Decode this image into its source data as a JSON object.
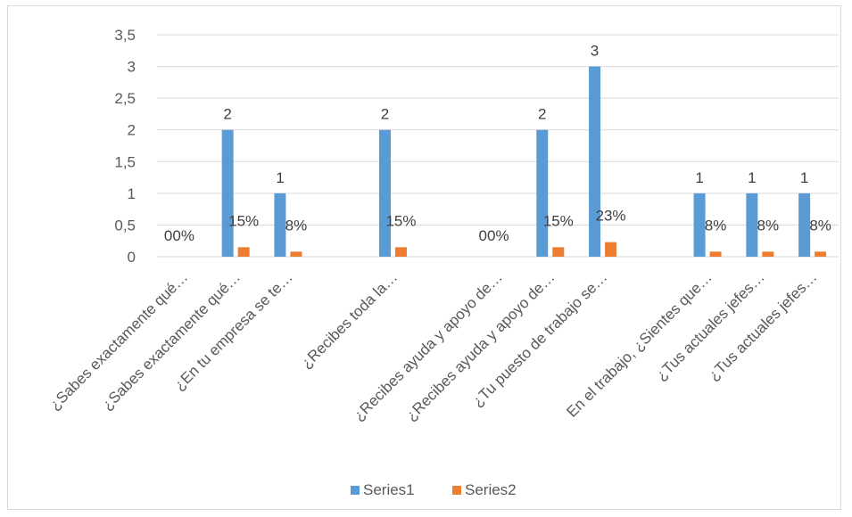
{
  "chart_data": {
    "type": "bar",
    "categories": [
      "¿Sabes exactamente qué…",
      "¿Sabes exactamente qué…",
      "¿En tu empresa se te…",
      "",
      "¿Recibes toda la…",
      "",
      "¿Recibes ayuda y apoyo de…",
      "¿Recibes ayuda y apoyo de…",
      "¿Tu puesto de trabajo se…",
      "",
      "En el trabajo, ¿Sientes que…",
      "¿Tus actuales jefes…",
      "¿Tus actuales jefes…"
    ],
    "series": [
      {
        "name": "Series1",
        "color": "#5b9bd5",
        "values": [
          0,
          2,
          1,
          null,
          2,
          null,
          0,
          2,
          3,
          null,
          1,
          1,
          1
        ],
        "labels": [
          "0",
          "2",
          "1",
          "",
          "2",
          "",
          "0",
          "2",
          "3",
          "",
          "1",
          "1",
          "1"
        ]
      },
      {
        "name": "Series2",
        "color": "#ed7d31",
        "values": [
          0,
          0.15,
          0.08,
          null,
          0.15,
          null,
          0,
          0.15,
          0.23,
          null,
          0.08,
          0.08,
          0.08
        ],
        "labels": [
          "0%",
          "15%",
          "8%",
          "",
          "15%",
          "",
          "0%",
          "15%",
          "23%",
          "",
          "8%",
          "8%",
          "8%"
        ]
      }
    ],
    "y_ticks": [
      "0",
      "0,5",
      "1",
      "1,5",
      "2",
      "2,5",
      "3",
      "3,5"
    ],
    "ylim": [
      0,
      3.5
    ],
    "grid": true,
    "legend": "bottom",
    "title": "",
    "xlabel": "",
    "ylabel": ""
  }
}
